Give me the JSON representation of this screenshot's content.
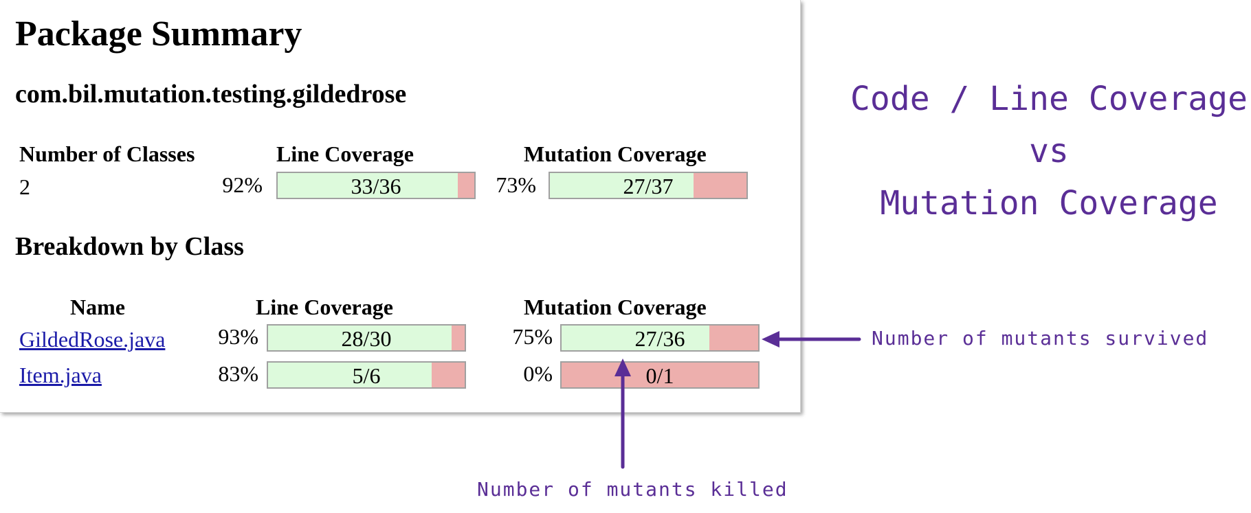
{
  "report": {
    "title": "Package Summary",
    "package_name": "com.bil.mutation.testing.gildedrose",
    "summary": {
      "headers": {
        "classes": "Number of Classes",
        "line": "Line Coverage",
        "mutation": "Mutation Coverage"
      },
      "classes": "2",
      "line": {
        "percent": "92%",
        "label": "33/36",
        "covered": 33,
        "total": 36
      },
      "mutation": {
        "percent": "73%",
        "label": "27/37",
        "covered": 27,
        "total": 37
      }
    },
    "breakdown_title": "Breakdown by Class",
    "breakdown_headers": {
      "name": "Name",
      "line": "Line Coverage",
      "mutation": "Mutation Coverage"
    },
    "rows": [
      {
        "name": "GildedRose.java",
        "line": {
          "percent": "93%",
          "label": "28/30",
          "covered": 28,
          "total": 30
        },
        "mutation": {
          "percent": "75%",
          "label": "27/36",
          "covered": 27,
          "total": 36
        }
      },
      {
        "name": "Item.java",
        "line": {
          "percent": "83%",
          "label": "5/6",
          "covered": 5,
          "total": 6
        },
        "mutation": {
          "percent": "0%",
          "label": "0/1",
          "covered": 0,
          "total": 1
        }
      }
    ]
  },
  "annotations": {
    "title_line1": "Code / Line Coverage",
    "title_line2": "vs",
    "title_line3": "Mutation Coverage",
    "survived_note": "Number of mutants survived",
    "killed_note": "Number of mutants killed",
    "ink_color": "#5a2e96"
  },
  "colors": {
    "covered": "#ddfadc",
    "missed": "#edafad",
    "bar_border": "#a0a0a0"
  }
}
